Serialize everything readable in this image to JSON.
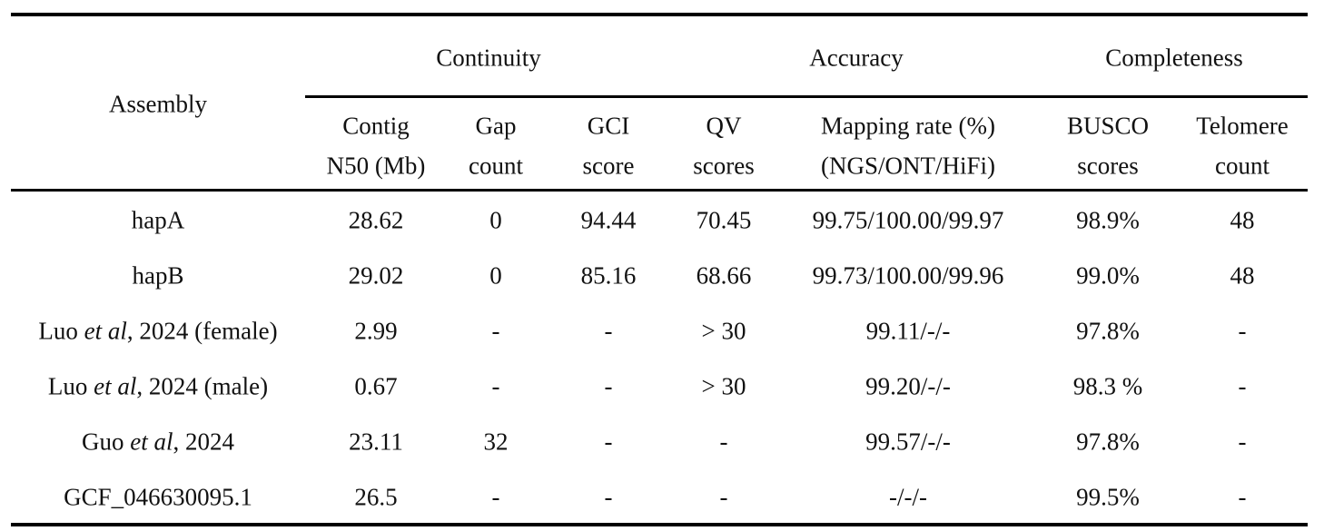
{
  "table": {
    "corner": "Assembly",
    "groups": [
      "Continuity",
      "Accuracy",
      "Completeness"
    ],
    "columns": [
      [
        "Contig",
        "N50 (Mb)"
      ],
      [
        "Gap",
        "count"
      ],
      [
        "GCI",
        "score"
      ],
      [
        "QV",
        "scores"
      ],
      [
        "Mapping rate (%)",
        "(NGS/ONT/HiFi)"
      ],
      [
        "BUSCO",
        "scores"
      ],
      [
        "Telomere",
        "count"
      ]
    ],
    "rows": [
      [
        [
          "hapA"
        ],
        "28.62",
        "0",
        "94.44",
        "70.45",
        "99.75/100.00/99.97",
        "98.9%",
        "48"
      ],
      [
        [
          "hapB"
        ],
        "29.02",
        "0",
        "85.16",
        "68.66",
        "99.73/100.00/99.96",
        "99.0%",
        "48"
      ],
      [
        [
          "Luo ",
          "et al",
          ", 2024 (female)"
        ],
        "2.99",
        "-",
        "-",
        "> 30",
        "99.11/-/-",
        "97.8%",
        "-"
      ],
      [
        [
          "Luo ",
          "et al",
          ", 2024 (male)"
        ],
        "0.67",
        "-",
        "-",
        "> 30",
        "99.20/-/-",
        "98.3 %",
        "-"
      ],
      [
        [
          "Guo ",
          "et al",
          ", 2024"
        ],
        "23.11",
        "32",
        "-",
        "-",
        "99.57/-/-",
        "97.8%",
        "-"
      ],
      [
        [
          "GCF_046630095.1"
        ],
        "26.5",
        "-",
        "-",
        "-",
        "-/-/-",
        "99.5%",
        "-"
      ]
    ]
  }
}
